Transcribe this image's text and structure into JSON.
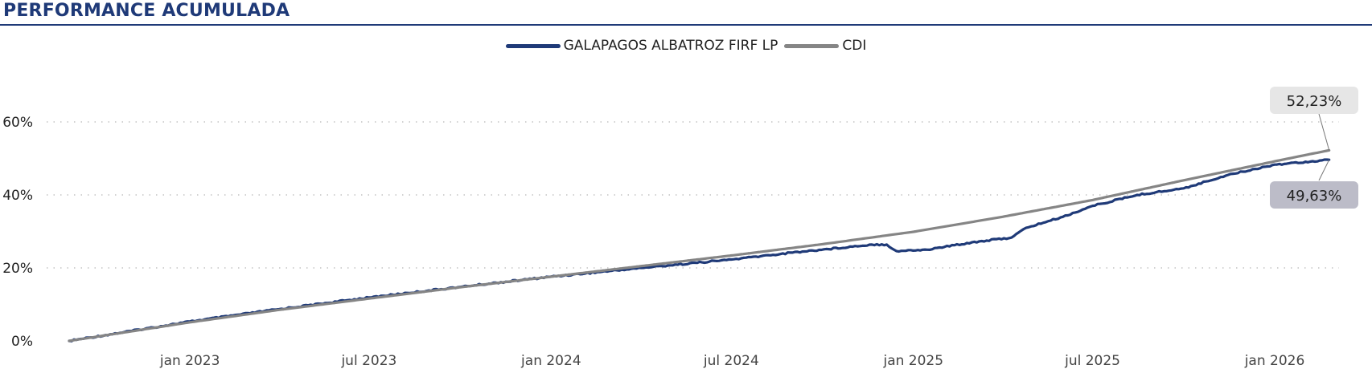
{
  "header": {
    "title": "PERFORMANCE ACUMULADA"
  },
  "colors": {
    "fund": "#1f3a78",
    "cdi": "#858585",
    "title": "#1f3a78",
    "callout_top": "#e6e6e6",
    "callout_bottom": "#bcbcc8"
  },
  "chart_data": {
    "type": "line",
    "title": "PERFORMANCE ACUMULADA",
    "xlabel": "",
    "ylabel": "",
    "x_range": [
      "2022-09-01",
      "2026-02-28"
    ],
    "ylim": [
      0,
      65
    ],
    "y_ticks": [
      0,
      20,
      40,
      60
    ],
    "y_tick_labels": [
      "0%",
      "20%",
      "40%",
      "60%"
    ],
    "x_ticks": [
      "2023-01-01",
      "2023-07-01",
      "2024-01-01",
      "2024-07-01",
      "2025-01-01",
      "2025-07-01",
      "2026-01-01"
    ],
    "x_tick_labels": [
      "jan 2023",
      "jul 2023",
      "jan 2024",
      "jul 2024",
      "jan 2025",
      "jul 2025",
      "jan 2026"
    ],
    "grid": "horizontal-dotted",
    "legend_position": "top-center",
    "series": [
      {
        "name": "GALAPAGOS ALBATROZ FIRF LP",
        "color": "#1f3a78",
        "points": [
          [
            "2022-09-01",
            0.0
          ],
          [
            "2023-01-01",
            5.3
          ],
          [
            "2023-04-01",
            8.7
          ],
          [
            "2023-07-01",
            11.9
          ],
          [
            "2023-10-01",
            14.8
          ],
          [
            "2024-01-01",
            17.6
          ],
          [
            "2024-04-01",
            20.0
          ],
          [
            "2024-07-01",
            22.3
          ],
          [
            "2024-09-01",
            24.2
          ],
          [
            "2024-11-20",
            26.4
          ],
          [
            "2024-12-05",
            26.4
          ],
          [
            "2024-12-15",
            24.6
          ],
          [
            "2025-01-15",
            25.0
          ],
          [
            "2025-03-01",
            27.0
          ],
          [
            "2025-04-10",
            28.3
          ],
          [
            "2025-04-25",
            31.0
          ],
          [
            "2025-06-01",
            34.0
          ],
          [
            "2025-07-01",
            37.0
          ],
          [
            "2025-08-15",
            40.0
          ],
          [
            "2025-10-01",
            41.8
          ],
          [
            "2025-11-15",
            45.5
          ],
          [
            "2026-01-01",
            48.3
          ],
          [
            "2026-02-25",
            49.63
          ]
        ]
      },
      {
        "name": "CDI",
        "color": "#858585",
        "points": [
          [
            "2022-09-01",
            0.0
          ],
          [
            "2023-01-01",
            5.1
          ],
          [
            "2023-04-01",
            8.5
          ],
          [
            "2023-07-01",
            11.6
          ],
          [
            "2023-10-01",
            14.7
          ],
          [
            "2024-01-01",
            17.6
          ],
          [
            "2024-04-01",
            20.5
          ],
          [
            "2024-07-01",
            23.4
          ],
          [
            "2024-10-01",
            26.5
          ],
          [
            "2025-01-01",
            29.9
          ],
          [
            "2025-04-01",
            34.0
          ],
          [
            "2025-07-01",
            38.6
          ],
          [
            "2025-10-01",
            44.0
          ],
          [
            "2026-01-01",
            49.2
          ],
          [
            "2026-02-25",
            52.23
          ]
        ]
      }
    ],
    "annotations": [
      {
        "series": "CDI",
        "text": "52,23%",
        "value": 52.23,
        "style": "callout_top"
      },
      {
        "series": "GALAPAGOS ALBATROZ FIRF LP",
        "text": "49,63%",
        "value": 49.63,
        "style": "callout_bottom"
      }
    ]
  }
}
